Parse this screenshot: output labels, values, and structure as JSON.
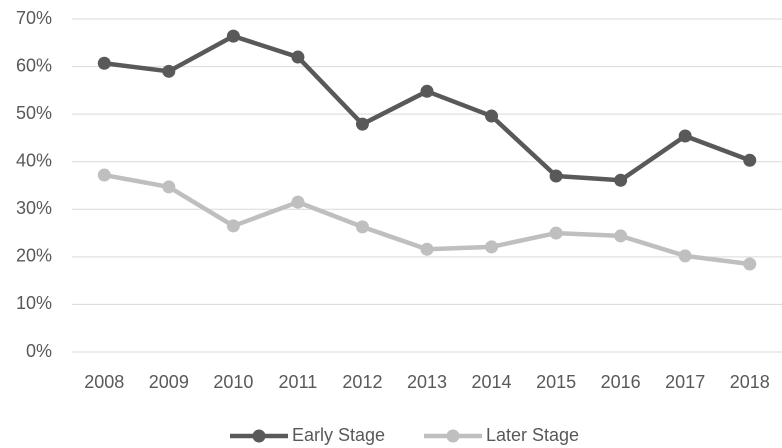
{
  "chart_data": {
    "type": "line",
    "categories": [
      "2008",
      "2009",
      "2010",
      "2011",
      "2012",
      "2013",
      "2014",
      "2015",
      "2016",
      "2017",
      "2018"
    ],
    "series": [
      {
        "name": "Early Stage",
        "color": "#595959",
        "values": [
          60.7,
          59.0,
          66.4,
          62.0,
          47.9,
          54.8,
          49.6,
          37.0,
          36.1,
          45.4,
          40.3
        ]
      },
      {
        "name": "Later Stage",
        "color": "#bfbfbf",
        "values": [
          37.2,
          34.7,
          26.5,
          31.5,
          26.3,
          21.6,
          22.1,
          25.0,
          24.4,
          20.2,
          18.5
        ]
      }
    ],
    "ylim": [
      0,
      70
    ],
    "yticks": [
      {
        "value": 0,
        "label": "0%"
      },
      {
        "value": 10,
        "label": "10%"
      },
      {
        "value": 20,
        "label": "20%"
      },
      {
        "value": 30,
        "label": "30%"
      },
      {
        "value": 40,
        "label": "40%"
      },
      {
        "value": 50,
        "label": "50%"
      },
      {
        "value": 60,
        "label": "60%"
      },
      {
        "value": 70,
        "label": "70%"
      }
    ],
    "grid": true,
    "legend": "bottom"
  }
}
